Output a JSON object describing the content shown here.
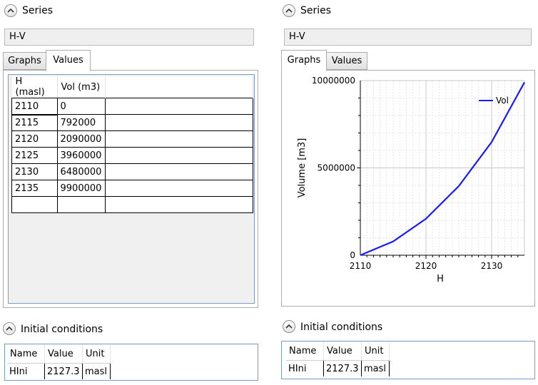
{
  "left": {
    "series_label": "Series",
    "series_name": "H-V",
    "tabs": [
      "Graphs",
      "Values"
    ],
    "active_tab": "Values",
    "table": {
      "headers": [
        "H (masl)",
        "Vol (m3)"
      ],
      "rows": [
        [
          "2110",
          "0"
        ],
        [
          "2115",
          "792000"
        ],
        [
          "2120",
          "2090000"
        ],
        [
          "2125",
          "3960000"
        ],
        [
          "2130",
          "6480000"
        ],
        [
          "2135",
          "9900000"
        ],
        [
          "",
          ""
        ]
      ]
    },
    "initial_conditions": {
      "label": "Initial conditions",
      "headers": [
        "Name",
        "Value",
        "Unit"
      ],
      "row": [
        "HIni",
        "2127.3",
        "masl"
      ]
    }
  },
  "right": {
    "series_label": "Series",
    "series_name": "H-V",
    "tabs": [
      "Graphs",
      "Values"
    ],
    "active_tab": "Graphs",
    "initial_conditions": {
      "label": "Initial conditions",
      "headers": [
        "Name",
        "Value",
        "Unit"
      ],
      "row": [
        "HIni",
        "2127.3",
        "masl"
      ]
    }
  },
  "chart_data": {
    "type": "line",
    "xlabel": "H",
    "ylabel": "Volume [m3]",
    "xlim": [
      2110,
      2135
    ],
    "ylim": [
      0,
      10000000
    ],
    "x_ticks": [
      "2110",
      "2120",
      "2130"
    ],
    "y_ticks": [
      "0",
      "5000000",
      "10000000"
    ],
    "grid": true,
    "legend_position": "top-right",
    "line_color": "#1a1aff",
    "series": [
      {
        "name": "Vol",
        "x": [
          2110,
          2115,
          2120,
          2125,
          2130,
          2135
        ],
        "values": [
          0,
          792000,
          2090000,
          3960000,
          6480000,
          9900000
        ]
      }
    ]
  }
}
